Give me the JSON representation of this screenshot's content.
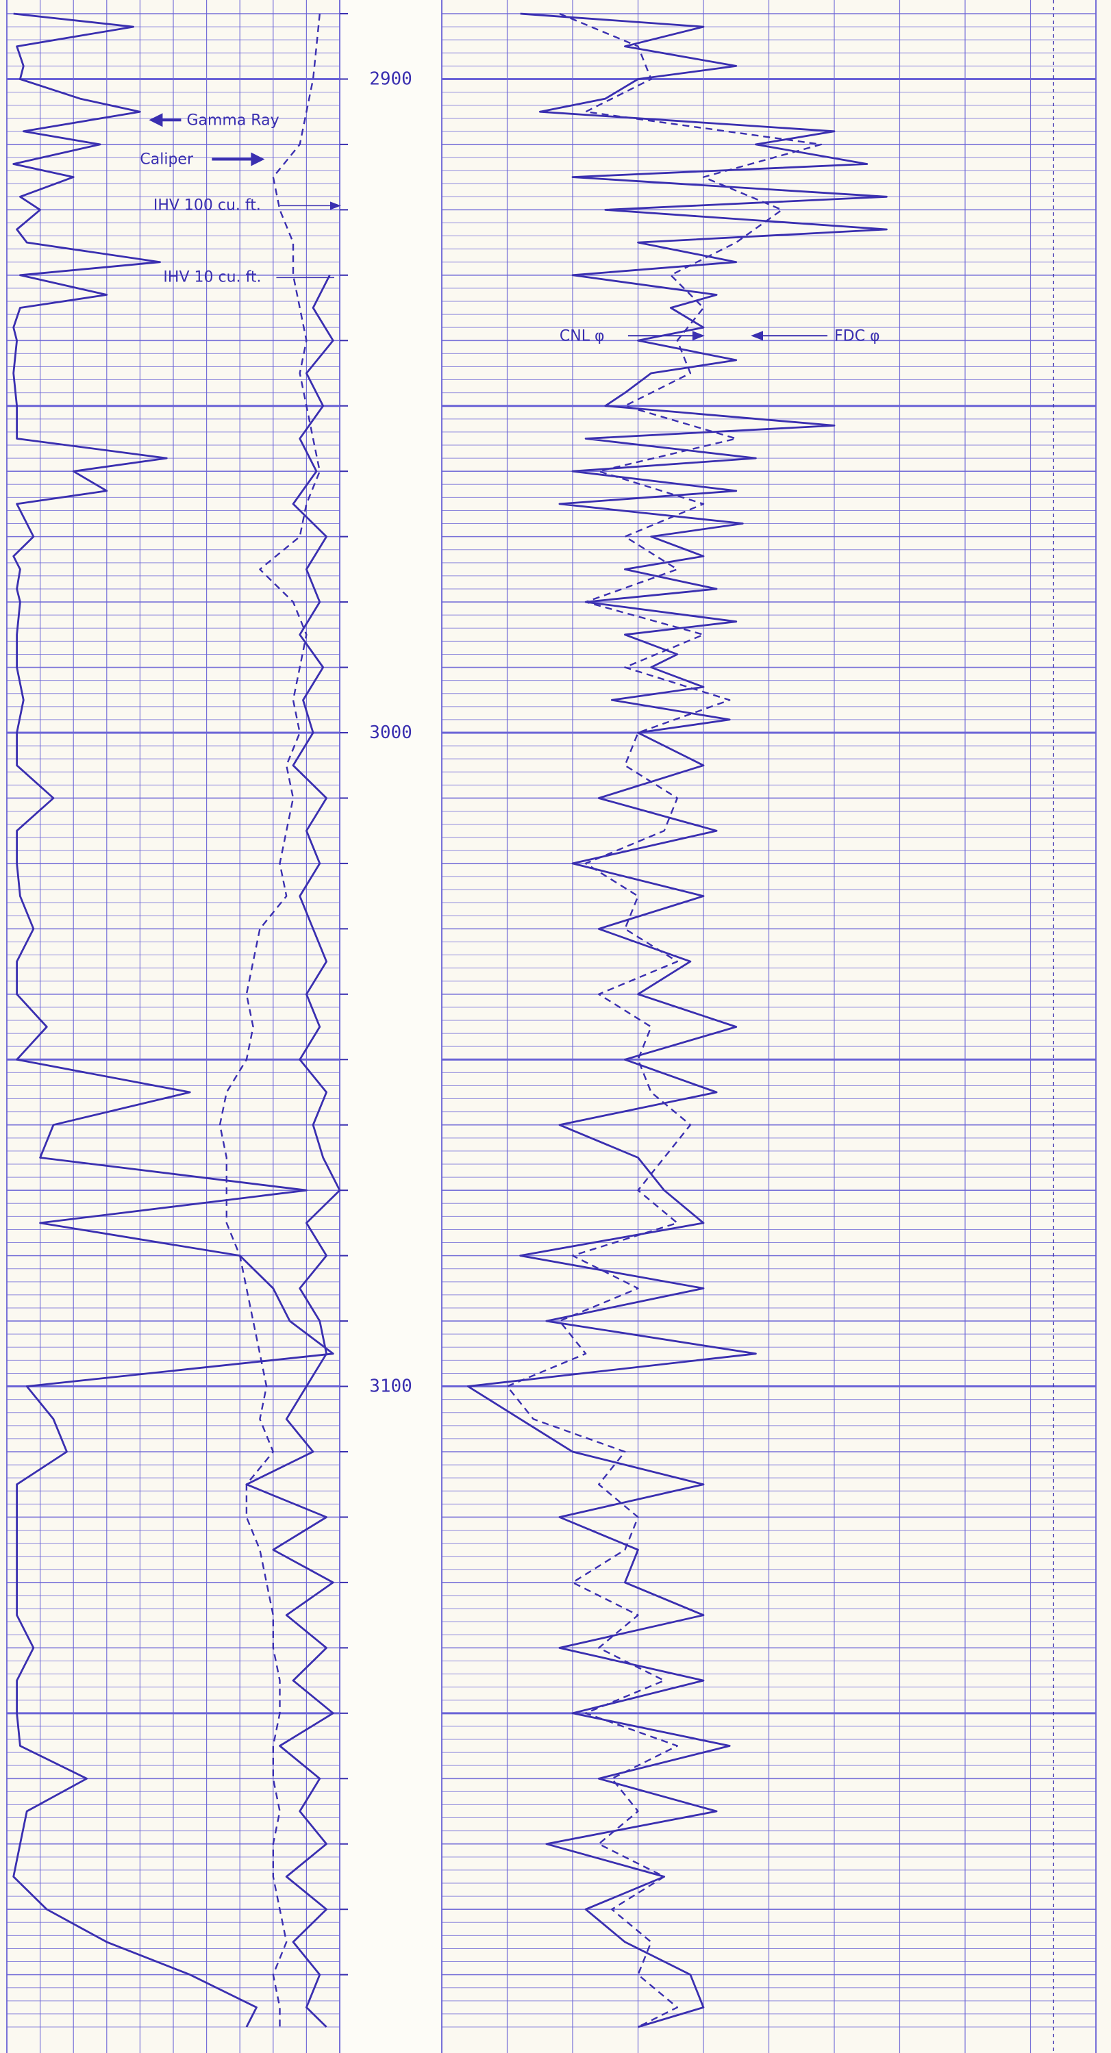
{
  "chart_data": {
    "type": "line",
    "title": "",
    "colors": {
      "ink": "#3a2fb0",
      "grid": "#6a63d6",
      "paper": "#fbf9f1"
    },
    "depth_axis": {
      "ticks": [
        "2900",
        "3000",
        "3100"
      ],
      "range": [
        2890,
        3198
      ]
    },
    "track1": {
      "xrange": [
        0,
        100
      ],
      "series": [
        {
          "name": "Gamma Ray",
          "style": "solid",
          "depth": [
            2890,
            2892,
            2895,
            2898,
            2900,
            2903,
            2905,
            2908,
            2910,
            2913,
            2915,
            2918,
            2920,
            2923,
            2925,
            2928,
            2930,
            2933,
            2935,
            2938,
            2940,
            2945,
            2950,
            2955,
            2958,
            2960,
            2963,
            2965,
            2968,
            2970,
            2973,
            2975,
            2978,
            2980,
            2985,
            2990,
            2995,
            3000,
            3005,
            3010,
            3015,
            3020,
            3025,
            3030,
            3035,
            3040,
            3045,
            3050,
            3055,
            3060,
            3065,
            3070,
            3075,
            3080,
            3085,
            3090,
            3095,
            3100,
            3105,
            3110,
            3115,
            3120,
            3125,
            3130,
            3135,
            3140,
            3145,
            3150,
            3155,
            3160,
            3165,
            3170,
            3175,
            3180,
            3185,
            3190,
            3195,
            3198
          ],
          "value": [
            2,
            38,
            3,
            5,
            4,
            22,
            40,
            5,
            28,
            2,
            20,
            4,
            10,
            3,
            6,
            46,
            4,
            30,
            4,
            2,
            3,
            2,
            3,
            3,
            48,
            20,
            30,
            3,
            6,
            8,
            2,
            4,
            3,
            4,
            3,
            3,
            5,
            3,
            3,
            14,
            3,
            3,
            4,
            8,
            3,
            3,
            12,
            3,
            55,
            14,
            10,
            90,
            10,
            70,
            80,
            85,
            98,
            6,
            14,
            18,
            3,
            3,
            3,
            3,
            3,
            8,
            3,
            3,
            4,
            24,
            6,
            4,
            2,
            12,
            30,
            55,
            75,
            72
          ]
        },
        {
          "name": "Caliper",
          "style": "dashed",
          "depth": [
            2890,
            2895,
            2900,
            2905,
            2910,
            2915,
            2920,
            2925,
            2930,
            2935,
            2940,
            2945,
            2950,
            2955,
            2960,
            2965,
            2970,
            2975,
            2980,
            2985,
            2990,
            2995,
            3000,
            3005,
            3010,
            3015,
            3020,
            3025,
            3030,
            3035,
            3040,
            3045,
            3050,
            3055,
            3060,
            3065,
            3070,
            3075,
            3080,
            3085,
            3090,
            3095,
            3100,
            3105,
            3110,
            3115,
            3120,
            3125,
            3130,
            3135,
            3140,
            3145,
            3150,
            3155,
            3160,
            3165,
            3170,
            3175,
            3180,
            3185,
            3190,
            3195,
            3198
          ],
          "value": [
            94,
            93,
            92,
            90,
            88,
            80,
            82,
            86,
            86,
            88,
            90,
            88,
            90,
            92,
            94,
            90,
            88,
            76,
            86,
            90,
            88,
            86,
            88,
            84,
            86,
            84,
            82,
            84,
            76,
            74,
            72,
            74,
            72,
            66,
            64,
            66,
            66,
            66,
            70,
            72,
            74,
            76,
            78,
            76,
            80,
            72,
            72,
            76,
            78,
            80,
            80,
            82,
            82,
            80,
            80,
            82,
            80,
            80,
            82,
            84,
            80,
            82,
            82
          ]
        },
        {
          "name": "IHV",
          "style": "solid",
          "depth": [
            2930,
            2935,
            2940,
            2945,
            2950,
            2955,
            2960,
            2965,
            2970,
            2975,
            2980,
            2985,
            2990,
            2995,
            3000,
            3005,
            3010,
            3015,
            3020,
            3025,
            3030,
            3035,
            3040,
            3045,
            3050,
            3055,
            3060,
            3065,
            3070,
            3075,
            3080,
            3085,
            3090,
            3095,
            3100,
            3105,
            3110,
            3115,
            3120,
            3125,
            3130,
            3135,
            3140,
            3145,
            3150,
            3155,
            3160,
            3165,
            3170,
            3175,
            3180,
            3185,
            3190,
            3195,
            3198
          ],
          "value": [
            97,
            92,
            98,
            90,
            95,
            88,
            93,
            86,
            96,
            90,
            94,
            88,
            95,
            89,
            92,
            86,
            96,
            90,
            94,
            88,
            92,
            96,
            90,
            94,
            88,
            96,
            92,
            95,
            100,
            90,
            96,
            88,
            94,
            96,
            90,
            84,
            92,
            72,
            96,
            80,
            98,
            84,
            96,
            86,
            98,
            82,
            94,
            88,
            96,
            84,
            96,
            86,
            94,
            90,
            96
          ]
        }
      ],
      "annotations": [
        {
          "text": "Gamma Ray",
          "depth": 2907,
          "x": 54
        },
        {
          "text": "Caliper",
          "depth": 2913,
          "x": 40
        },
        {
          "text": "IHV 100 cu. ft.",
          "depth": 2920,
          "x": 44
        },
        {
          "text": "IHV 10 cu. ft.",
          "depth": 2931,
          "x": 47
        }
      ]
    },
    "track2": {
      "xrange": [
        0,
        100
      ],
      "series": [
        {
          "name": "FDC φ",
          "style": "solid",
          "depth": [
            2890,
            2892,
            2895,
            2898,
            2900,
            2903,
            2905,
            2908,
            2910,
            2913,
            2915,
            2918,
            2920,
            2923,
            2925,
            2928,
            2930,
            2933,
            2935,
            2938,
            2940,
            2943,
            2945,
            2948,
            2950,
            2953,
            2955,
            2958,
            2960,
            2963,
            2965,
            2968,
            2970,
            2973,
            2975,
            2978,
            2980,
            2983,
            2985,
            2988,
            2990,
            2993,
            2995,
            2998,
            3000,
            3005,
            3010,
            3015,
            3020,
            3025,
            3030,
            3035,
            3040,
            3045,
            3050,
            3055,
            3060,
            3065,
            3070,
            3075,
            3080,
            3085,
            3090,
            3095,
            3100,
            3105,
            3110,
            3115,
            3120,
            3125,
            3130,
            3135,
            3140,
            3145,
            3150,
            3155,
            3160,
            3165,
            3170,
            3175,
            3180,
            3185,
            3190,
            3195,
            3198
          ],
          "value": [
            12,
            40,
            28,
            45,
            30,
            25,
            15,
            60,
            48,
            65,
            20,
            68,
            25,
            68,
            30,
            45,
            20,
            42,
            35,
            40,
            30,
            45,
            32,
            28,
            25,
            60,
            22,
            48,
            20,
            45,
            18,
            46,
            32,
            40,
            28,
            42,
            22,
            45,
            28,
            36,
            32,
            40,
            26,
            44,
            30,
            40,
            24,
            42,
            20,
            40,
            24,
            38,
            30,
            45,
            28,
            42,
            18,
            30,
            34,
            40,
            12,
            40,
            16,
            48,
            4,
            12,
            20,
            40,
            18,
            30,
            28,
            40,
            18,
            40,
            20,
            44,
            24,
            42,
            16,
            34,
            22,
            28,
            38,
            40,
            30
          ]
        },
        {
          "name": "CNL φ",
          "style": "dashed",
          "depth": [
            2890,
            2895,
            2900,
            2905,
            2910,
            2915,
            2920,
            2925,
            2930,
            2935,
            2940,
            2945,
            2950,
            2955,
            2960,
            2965,
            2970,
            2975,
            2980,
            2985,
            2990,
            2995,
            3000,
            3005,
            3010,
            3015,
            3020,
            3025,
            3030,
            3035,
            3040,
            3045,
            3050,
            3055,
            3060,
            3065,
            3070,
            3075,
            3080,
            3085,
            3090,
            3095,
            3100,
            3105,
            3110,
            3115,
            3120,
            3125,
            3130,
            3135,
            3140,
            3145,
            3150,
            3155,
            3160,
            3165,
            3170,
            3175,
            3180,
            3185,
            3190,
            3195,
            3198
          ],
          "value": [
            18,
            30,
            32,
            22,
            58,
            40,
            52,
            45,
            35,
            40,
            36,
            38,
            28,
            45,
            24,
            40,
            28,
            36,
            22,
            40,
            28,
            44,
            30,
            28,
            36,
            34,
            22,
            30,
            28,
            36,
            24,
            32,
            30,
            32,
            38,
            34,
            30,
            36,
            20,
            30,
            18,
            22,
            10,
            14,
            28,
            24,
            30,
            28,
            20,
            30,
            24,
            34,
            22,
            36,
            26,
            30,
            24,
            34,
            26,
            32,
            30,
            36,
            30
          ]
        }
      ],
      "annotations": [
        {
          "text": "CNL φ",
          "depth": 2940,
          "x": 18
        },
        {
          "text": "FDC φ",
          "depth": 2940,
          "x": 60
        }
      ]
    }
  }
}
